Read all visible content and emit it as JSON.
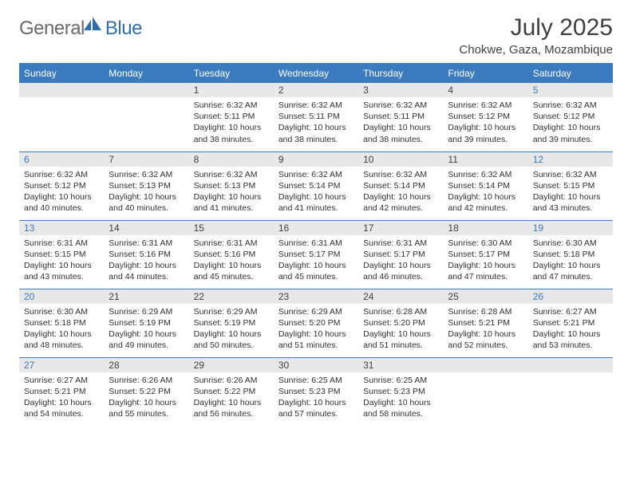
{
  "logo": {
    "gray": "General",
    "blue": "Blue"
  },
  "title": "July 2025",
  "location": "Chokwe, Gaza, Mozambique",
  "colors": {
    "headerBg": "#3b7bbf",
    "headerText": "#ffffff",
    "dayBg": "#e8e8e8",
    "weekendNum": "#3b7bbf",
    "bodyText": "#303030",
    "titleText": "#404040",
    "logoGray": "#6a6a6a",
    "logoBlue": "#2f6fad"
  },
  "weekdays": [
    "Sunday",
    "Monday",
    "Tuesday",
    "Wednesday",
    "Thursday",
    "Friday",
    "Saturday"
  ],
  "weeks": [
    [
      {
        "empty": true
      },
      {
        "empty": true
      },
      {
        "n": "1",
        "sr": "6:32 AM",
        "ss": "5:11 PM",
        "dl": "10 hours and 38 minutes."
      },
      {
        "n": "2",
        "sr": "6:32 AM",
        "ss": "5:11 PM",
        "dl": "10 hours and 38 minutes."
      },
      {
        "n": "3",
        "sr": "6:32 AM",
        "ss": "5:11 PM",
        "dl": "10 hours and 38 minutes."
      },
      {
        "n": "4",
        "sr": "6:32 AM",
        "ss": "5:12 PM",
        "dl": "10 hours and 39 minutes."
      },
      {
        "n": "5",
        "sr": "6:32 AM",
        "ss": "5:12 PM",
        "dl": "10 hours and 39 minutes.",
        "we": true
      }
    ],
    [
      {
        "n": "6",
        "sr": "6:32 AM",
        "ss": "5:12 PM",
        "dl": "10 hours and 40 minutes.",
        "we": true
      },
      {
        "n": "7",
        "sr": "6:32 AM",
        "ss": "5:13 PM",
        "dl": "10 hours and 40 minutes."
      },
      {
        "n": "8",
        "sr": "6:32 AM",
        "ss": "5:13 PM",
        "dl": "10 hours and 41 minutes."
      },
      {
        "n": "9",
        "sr": "6:32 AM",
        "ss": "5:14 PM",
        "dl": "10 hours and 41 minutes."
      },
      {
        "n": "10",
        "sr": "6:32 AM",
        "ss": "5:14 PM",
        "dl": "10 hours and 42 minutes."
      },
      {
        "n": "11",
        "sr": "6:32 AM",
        "ss": "5:14 PM",
        "dl": "10 hours and 42 minutes."
      },
      {
        "n": "12",
        "sr": "6:32 AM",
        "ss": "5:15 PM",
        "dl": "10 hours and 43 minutes.",
        "we": true
      }
    ],
    [
      {
        "n": "13",
        "sr": "6:31 AM",
        "ss": "5:15 PM",
        "dl": "10 hours and 43 minutes.",
        "we": true
      },
      {
        "n": "14",
        "sr": "6:31 AM",
        "ss": "5:16 PM",
        "dl": "10 hours and 44 minutes."
      },
      {
        "n": "15",
        "sr": "6:31 AM",
        "ss": "5:16 PM",
        "dl": "10 hours and 45 minutes."
      },
      {
        "n": "16",
        "sr": "6:31 AM",
        "ss": "5:17 PM",
        "dl": "10 hours and 45 minutes."
      },
      {
        "n": "17",
        "sr": "6:31 AM",
        "ss": "5:17 PM",
        "dl": "10 hours and 46 minutes."
      },
      {
        "n": "18",
        "sr": "6:30 AM",
        "ss": "5:17 PM",
        "dl": "10 hours and 47 minutes."
      },
      {
        "n": "19",
        "sr": "6:30 AM",
        "ss": "5:18 PM",
        "dl": "10 hours and 47 minutes.",
        "we": true
      }
    ],
    [
      {
        "n": "20",
        "sr": "6:30 AM",
        "ss": "5:18 PM",
        "dl": "10 hours and 48 minutes.",
        "we": true
      },
      {
        "n": "21",
        "sr": "6:29 AM",
        "ss": "5:19 PM",
        "dl": "10 hours and 49 minutes."
      },
      {
        "n": "22",
        "sr": "6:29 AM",
        "ss": "5:19 PM",
        "dl": "10 hours and 50 minutes."
      },
      {
        "n": "23",
        "sr": "6:29 AM",
        "ss": "5:20 PM",
        "dl": "10 hours and 51 minutes."
      },
      {
        "n": "24",
        "sr": "6:28 AM",
        "ss": "5:20 PM",
        "dl": "10 hours and 51 minutes."
      },
      {
        "n": "25",
        "sr": "6:28 AM",
        "ss": "5:21 PM",
        "dl": "10 hours and 52 minutes."
      },
      {
        "n": "26",
        "sr": "6:27 AM",
        "ss": "5:21 PM",
        "dl": "10 hours and 53 minutes.",
        "we": true
      }
    ],
    [
      {
        "n": "27",
        "sr": "6:27 AM",
        "ss": "5:21 PM",
        "dl": "10 hours and 54 minutes.",
        "we": true
      },
      {
        "n": "28",
        "sr": "6:26 AM",
        "ss": "5:22 PM",
        "dl": "10 hours and 55 minutes."
      },
      {
        "n": "29",
        "sr": "6:26 AM",
        "ss": "5:22 PM",
        "dl": "10 hours and 56 minutes."
      },
      {
        "n": "30",
        "sr": "6:25 AM",
        "ss": "5:23 PM",
        "dl": "10 hours and 57 minutes."
      },
      {
        "n": "31",
        "sr": "6:25 AM",
        "ss": "5:23 PM",
        "dl": "10 hours and 58 minutes."
      },
      {
        "empty": true
      },
      {
        "empty": true
      }
    ]
  ],
  "labels": {
    "sunrise": "Sunrise:",
    "sunset": "Sunset:",
    "daylight": "Daylight:"
  }
}
